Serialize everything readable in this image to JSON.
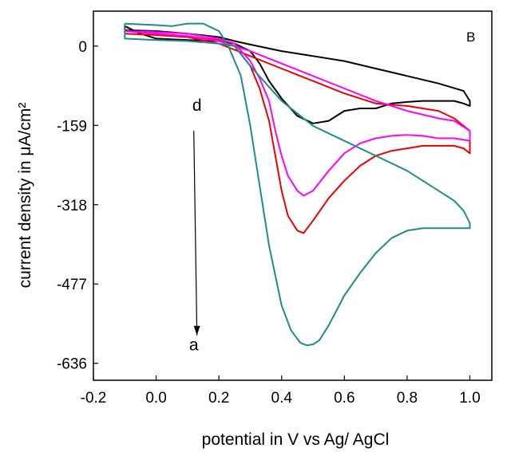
{
  "chart_data": {
    "type": "line",
    "panel_label": "B",
    "xlabel": "potential in V vs Ag/ AgCl",
    "ylabel": "current density in μA/cm²",
    "xlim": [
      -0.2,
      1.07
    ],
    "ylim": [
      -670,
      70
    ],
    "xticks": [
      "-0.2",
      "0.0",
      "0.2",
      "0.4",
      "0.6",
      "0.8",
      "1.0"
    ],
    "xtick_values": [
      -0.2,
      0.0,
      0.2,
      0.4,
      0.6,
      0.8,
      1.0
    ],
    "yticks": [
      "0",
      "-159",
      "-318",
      "-477",
      "-636"
    ],
    "ytick_values": [
      0,
      -159,
      -318,
      -477,
      -636
    ],
    "annotations": [
      {
        "text": "d",
        "x": 0.13,
        "y": -130
      },
      {
        "text": "a",
        "x": 0.12,
        "y": -610
      }
    ],
    "arrow": {
      "from": [
        0.12,
        -170
      ],
      "to": [
        0.13,
        -580
      ]
    },
    "series": [
      {
        "color": "#000000",
        "x": [
          -0.1,
          -0.05,
          0.0,
          0.1,
          0.2,
          0.25,
          0.3,
          0.33,
          0.36,
          0.4,
          0.45,
          0.5,
          0.55,
          0.6,
          0.65,
          0.7,
          0.75,
          0.8,
          0.85,
          0.9,
          0.95,
          0.98,
          1.0,
          1.0,
          0.98,
          0.9,
          0.8,
          0.7,
          0.6,
          0.5,
          0.4,
          0.3,
          0.25,
          0.2,
          0.1,
          0.0,
          -0.1,
          -0.1
        ],
        "y": [
          40,
          25,
          15,
          12,
          10,
          5,
          -10,
          -35,
          -70,
          -105,
          -140,
          -155,
          -150,
          -130,
          -125,
          -125,
          -115,
          -112,
          -110,
          -110,
          -110,
          -115,
          -120,
          -110,
          -90,
          -75,
          -60,
          -45,
          -30,
          -20,
          -10,
          3,
          10,
          18,
          25,
          30,
          32,
          40
        ]
      },
      {
        "color": "#ee0000",
        "x": [
          -0.1,
          0.0,
          0.1,
          0.2,
          0.25,
          0.3,
          0.33,
          0.36,
          0.38,
          0.4,
          0.42,
          0.45,
          0.47,
          0.5,
          0.55,
          0.6,
          0.65,
          0.7,
          0.75,
          0.8,
          0.85,
          0.9,
          0.95,
          0.98,
          1.0,
          1.0,
          0.95,
          0.9,
          0.8,
          0.7,
          0.6,
          0.5,
          0.4,
          0.3,
          0.2,
          0.1,
          0.0,
          -0.1,
          -0.1
        ],
        "y": [
          25,
          22,
          20,
          12,
          0,
          -40,
          -85,
          -150,
          -220,
          -290,
          -340,
          -370,
          -375,
          -350,
          -305,
          -270,
          -240,
          -220,
          -210,
          -205,
          -200,
          -200,
          -200,
          -205,
          -215,
          -170,
          -145,
          -130,
          -120,
          -115,
          -95,
          -70,
          -45,
          -20,
          5,
          18,
          22,
          25,
          25
        ]
      },
      {
        "color": "#ff00ff",
        "x": [
          -0.1,
          0.0,
          0.1,
          0.2,
          0.25,
          0.3,
          0.33,
          0.36,
          0.38,
          0.4,
          0.42,
          0.45,
          0.47,
          0.5,
          0.55,
          0.6,
          0.65,
          0.7,
          0.75,
          0.8,
          0.85,
          0.9,
          0.95,
          0.98,
          1.0,
          1.0,
          0.95,
          0.9,
          0.8,
          0.7,
          0.6,
          0.5,
          0.4,
          0.3,
          0.2,
          0.1,
          0.0,
          -0.1,
          -0.1
        ],
        "y": [
          30,
          28,
          25,
          15,
          5,
          -30,
          -65,
          -110,
          -170,
          -220,
          -260,
          -290,
          -300,
          -290,
          -250,
          -215,
          -195,
          -185,
          -180,
          -178,
          -180,
          -185,
          -185,
          -188,
          -190,
          -170,
          -150,
          -145,
          -130,
          -110,
          -85,
          -60,
          -35,
          -10,
          10,
          20,
          25,
          30,
          30
        ]
      },
      {
        "color": "#1e8c88",
        "x": [
          -0.1,
          0.0,
          0.05,
          0.1,
          0.15,
          0.2,
          0.23,
          0.27,
          0.3,
          0.33,
          0.36,
          0.4,
          0.43,
          0.46,
          0.48,
          0.5,
          0.52,
          0.55,
          0.6,
          0.65,
          0.7,
          0.75,
          0.8,
          0.85,
          0.9,
          0.95,
          1.0,
          1.0,
          0.98,
          0.95,
          0.9,
          0.85,
          0.8,
          0.7,
          0.6,
          0.5,
          0.4,
          0.3,
          0.25,
          0.2,
          0.1,
          0.0,
          -0.1,
          -0.1
        ],
        "y": [
          45,
          42,
          40,
          45,
          45,
          30,
          0,
          -60,
          -160,
          -280,
          -400,
          -520,
          -570,
          -595,
          -600,
          -598,
          -590,
          -560,
          -500,
          -455,
          -415,
          -385,
          -370,
          -365,
          -365,
          -365,
          -365,
          -355,
          -330,
          -310,
          -290,
          -270,
          -250,
          -220,
          -190,
          -160,
          -110,
          -40,
          0,
          5,
          10,
          12,
          15,
          45
        ]
      }
    ]
  }
}
